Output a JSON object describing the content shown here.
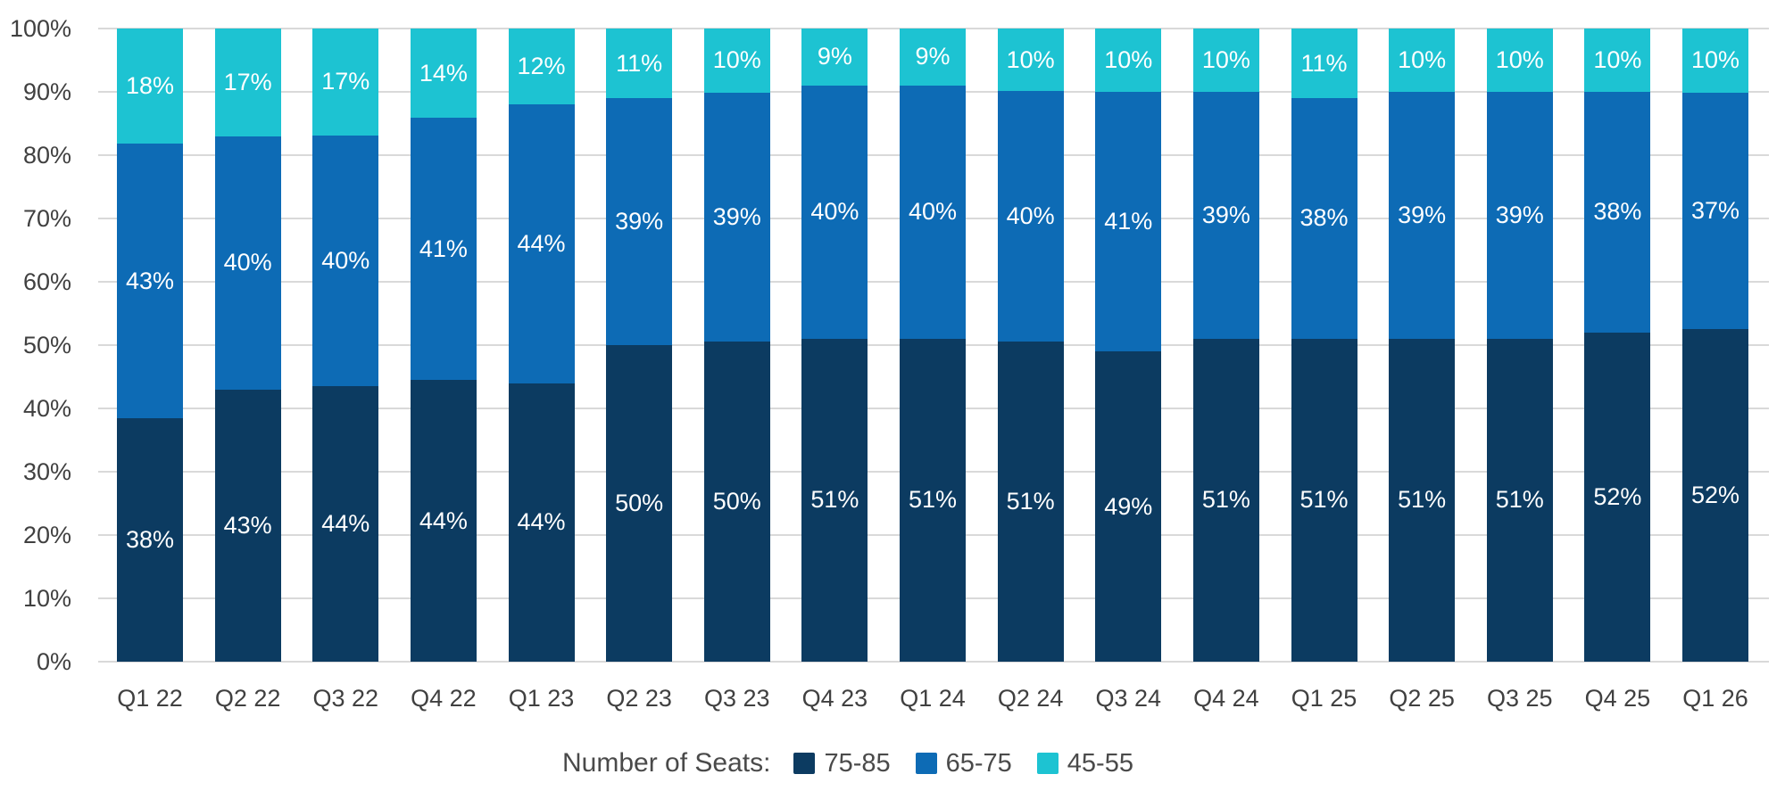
{
  "chart_data": {
    "type": "bar",
    "stacked": true,
    "normalized_to_100": true,
    "title": "",
    "categories": [
      "Q1 22",
      "Q2 22",
      "Q3 22",
      "Q4 22",
      "Q1 23",
      "Q2 23",
      "Q3 23",
      "Q4 23",
      "Q1 24",
      "Q2 24",
      "Q3 24",
      "Q4 24",
      "Q1 25",
      "Q2 25",
      "Q3 25",
      "Q4 25",
      "Q1 26"
    ],
    "series": [
      {
        "name": "75-85",
        "color": "#0c3b61",
        "values": [
          38,
          43,
          44,
          44,
          44,
          50,
          50,
          51,
          51,
          51,
          49,
          51,
          51,
          51,
          51,
          52,
          52
        ]
      },
      {
        "name": "65-75",
        "color": "#0d6bb5",
        "values": [
          43,
          40,
          40,
          41,
          44,
          39,
          39,
          40,
          40,
          40,
          41,
          39,
          38,
          39,
          39,
          38,
          37
        ]
      },
      {
        "name": "45-55",
        "color": "#1dc3d2",
        "values": [
          18,
          17,
          17,
          14,
          12,
          11,
          10,
          9,
          9,
          10,
          10,
          10,
          11,
          10,
          10,
          10,
          10
        ]
      }
    ],
    "value_label_suffix": "%",
    "xlabel": "",
    "ylabel": "",
    "y_axis": {
      "min": 0,
      "max": 100,
      "step": 10,
      "tick_suffix": "%"
    },
    "y_ticks": [
      "0%",
      "10%",
      "20%",
      "30%",
      "40%",
      "50%",
      "60%",
      "70%",
      "80%",
      "90%",
      "100%"
    ],
    "grid": true,
    "legend": {
      "title": "Number of Seats:",
      "position": "bottom",
      "entries": [
        "75-85",
        "65-75",
        "45-55"
      ]
    }
  },
  "colors": {
    "background": "#ffffff",
    "gridline": "#d9d9d9",
    "axis_text": "#404040",
    "legend_text": "#4a4a4a",
    "segment_label_text": "#ffffff",
    "series_75_85": "#0c3b61",
    "series_65_75": "#0d6bb5",
    "series_45_55": "#1dc3d2"
  }
}
